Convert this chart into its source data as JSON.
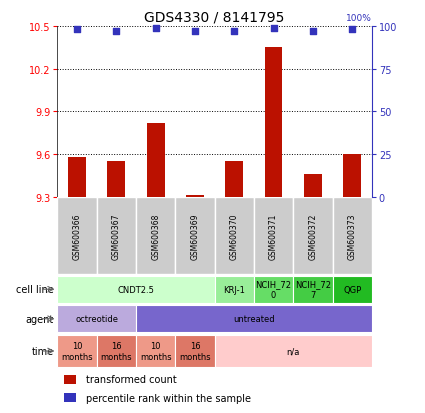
{
  "title": "GDS4330 / 8141795",
  "samples": [
    "GSM600366",
    "GSM600367",
    "GSM600368",
    "GSM600369",
    "GSM600370",
    "GSM600371",
    "GSM600372",
    "GSM600373"
  ],
  "bar_values": [
    9.58,
    9.55,
    9.82,
    9.31,
    9.55,
    10.35,
    9.46,
    9.6
  ],
  "percentile_values": [
    98,
    97,
    99,
    97,
    97,
    99,
    97,
    98
  ],
  "ylim": [
    9.3,
    10.5
  ],
  "yticks": [
    9.3,
    9.6,
    9.9,
    10.2,
    10.5
  ],
  "right_yticks": [
    0,
    25,
    50,
    75,
    100
  ],
  "right_ylim": [
    0,
    100
  ],
  "bar_color": "#BB1100",
  "dot_color": "#3333BB",
  "sample_box_color": "#CCCCCC",
  "cell_line_groups": [
    {
      "label": "CNDT2.5",
      "start": 0,
      "end": 3,
      "color": "#CCFFCC"
    },
    {
      "label": "KRJ-1",
      "start": 4,
      "end": 4,
      "color": "#99EE99"
    },
    {
      "label": "NCIH_72\n0",
      "start": 5,
      "end": 5,
      "color": "#66DD66"
    },
    {
      "label": "NCIH_72\n7",
      "start": 6,
      "end": 6,
      "color": "#44CC44"
    },
    {
      "label": "QGP",
      "start": 7,
      "end": 7,
      "color": "#22BB22"
    }
  ],
  "agent_groups": [
    {
      "label": "octreotide",
      "start": 0,
      "end": 1,
      "color": "#BBAADD"
    },
    {
      "label": "untreated",
      "start": 2,
      "end": 7,
      "color": "#7766CC"
    }
  ],
  "time_groups": [
    {
      "label": "10\nmonths",
      "start": 0,
      "end": 0,
      "color": "#EE9988"
    },
    {
      "label": "16\nmonths",
      "start": 1,
      "end": 1,
      "color": "#DD7766"
    },
    {
      "label": "10\nmonths",
      "start": 2,
      "end": 2,
      "color": "#EE9988"
    },
    {
      "label": "16\nmonths",
      "start": 3,
      "end": 3,
      "color": "#DD7766"
    },
    {
      "label": "n/a",
      "start": 4,
      "end": 7,
      "color": "#FFCCCC"
    }
  ],
  "row_labels": [
    "cell line",
    "agent",
    "time"
  ],
  "legend_items": [
    {
      "label": "transformed count",
      "color": "#BB1100"
    },
    {
      "label": "percentile rank within the sample",
      "color": "#3333BB"
    }
  ]
}
